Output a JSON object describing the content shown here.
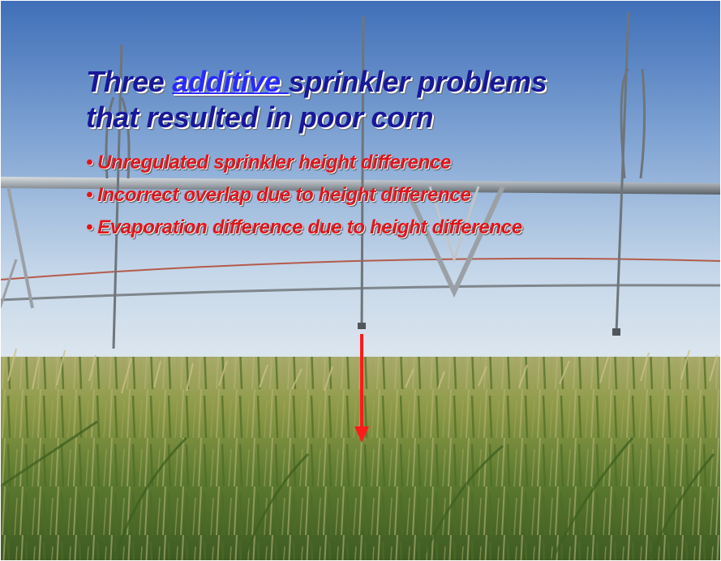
{
  "slide": {
    "title": {
      "word1": "Three ",
      "link_word": "additive ",
      "rest_line1": "sprinkler problems",
      "line2": "that resulted in poor corn"
    },
    "bullet_marker": "•",
    "bullets": [
      "Unregulated sprinkler height difference",
      "Incorrect overlap due to height difference",
      "Evaporation difference due to height difference"
    ]
  },
  "colors": {
    "title": "#18189a",
    "title_link": "#2a2aff",
    "bullets": "#e3141b",
    "arrow": "#ff1a1a",
    "sky_top": "#4d7cc0",
    "sky_bottom": "#d9e4ee",
    "corn": "#8c9a3e"
  },
  "photo": {
    "subject": "center-pivot sprinkler system over corn field",
    "icons": [
      "sprinkler-pipe-icon",
      "down-arrow-icon"
    ]
  }
}
